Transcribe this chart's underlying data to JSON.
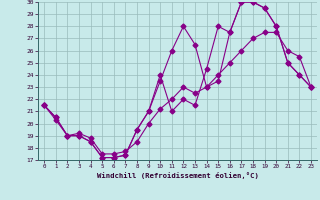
{
  "xlabel": "Windchill (Refroidissement éolien,°C)",
  "xlim": [
    -0.5,
    23.5
  ],
  "ylim": [
    17,
    30
  ],
  "xticks": [
    0,
    1,
    2,
    3,
    4,
    5,
    6,
    7,
    8,
    9,
    10,
    11,
    12,
    13,
    14,
    15,
    16,
    17,
    18,
    19,
    20,
    21,
    22,
    23
  ],
  "yticks": [
    17,
    18,
    19,
    20,
    21,
    22,
    23,
    24,
    25,
    26,
    27,
    28,
    29,
    30
  ],
  "bg_color": "#c8eaea",
  "line_color": "#880088",
  "grid_color": "#99bbbb",
  "line1_x": [
    0,
    1,
    2,
    3,
    4,
    5,
    6,
    7,
    8,
    9,
    10,
    11,
    12,
    13,
    14,
    15,
    16,
    17,
    18,
    19,
    20,
    21,
    22,
    23
  ],
  "line1_y": [
    21.5,
    20.5,
    19.0,
    19.0,
    18.5,
    17.2,
    17.2,
    17.4,
    19.5,
    21.0,
    23.5,
    26.0,
    28.0,
    26.5,
    23.0,
    23.5,
    27.5,
    30.0,
    30.0,
    29.5,
    28.0,
    25.0,
    24.0,
    23.0
  ],
  "line2_x": [
    0,
    1,
    2,
    3,
    4,
    5,
    6,
    7,
    8,
    9,
    10,
    11,
    12,
    13,
    14,
    15,
    16,
    17,
    18,
    19,
    20,
    21,
    22,
    23
  ],
  "line2_y": [
    21.5,
    20.5,
    19.0,
    19.0,
    18.5,
    17.2,
    17.2,
    17.4,
    19.5,
    21.0,
    24.0,
    21.0,
    22.0,
    21.5,
    24.5,
    28.0,
    27.5,
    30.0,
    30.0,
    29.5,
    28.0,
    25.0,
    24.0,
    23.0
  ],
  "line3_x": [
    0,
    1,
    2,
    3,
    4,
    5,
    6,
    7,
    8,
    9,
    10,
    11,
    12,
    13,
    14,
    15,
    16,
    17,
    18,
    19,
    20,
    21,
    22,
    23
  ],
  "line3_y": [
    21.5,
    20.3,
    19.0,
    19.2,
    18.8,
    17.5,
    17.5,
    17.7,
    18.5,
    20.0,
    21.2,
    22.0,
    23.0,
    22.5,
    23.0,
    24.0,
    25.0,
    26.0,
    27.0,
    27.5,
    27.5,
    26.0,
    25.5,
    23.0
  ]
}
